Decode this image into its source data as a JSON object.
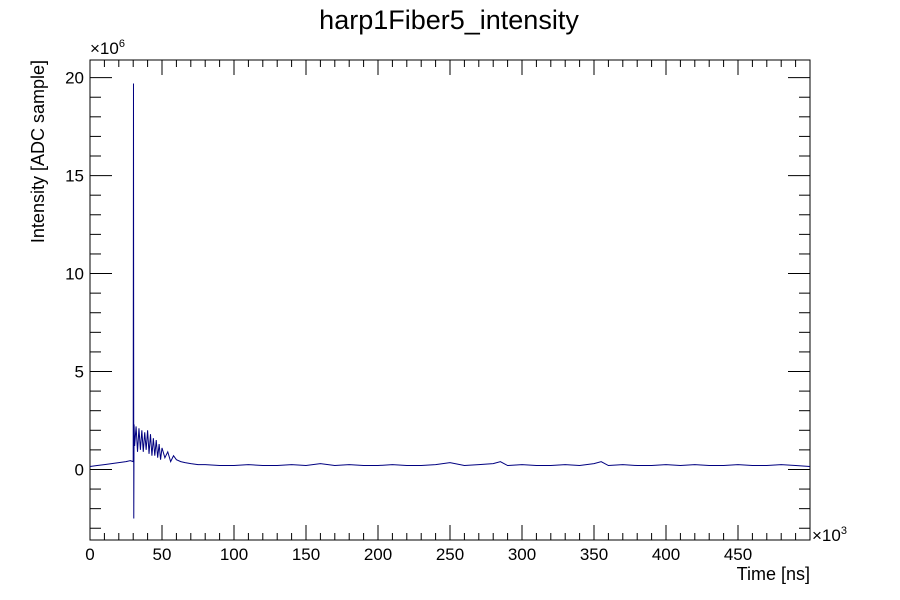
{
  "chart_data": {
    "type": "line",
    "title": "harp1Fiber5_intensity",
    "xlabel": "Time [ns]",
    "ylabel": "Intensity [ADC sample]",
    "x_exponent_label": "×10",
    "x_exponent_power": "3",
    "y_exponent_label": "×10",
    "y_exponent_power": "6",
    "xlim": [
      0,
      500
    ],
    "ylim": [
      -3.6,
      20.9
    ],
    "xticks": [
      0,
      50,
      100,
      150,
      200,
      250,
      300,
      350,
      400,
      450
    ],
    "xtick_labels": [
      "0",
      "50",
      "100",
      "150",
      "200",
      "250",
      "300",
      "350",
      "400",
      "450"
    ],
    "yticks": [
      0,
      5,
      10,
      15,
      20
    ],
    "ytick_labels": [
      "0",
      "5",
      "10",
      "15",
      "20"
    ],
    "line_color": "#000080",
    "grid": false,
    "series": [
      {
        "x": [
          0,
          5,
          10,
          15,
          20,
          25,
          28,
          30,
          30.2,
          30.4,
          30.6,
          31,
          32,
          33,
          34,
          35,
          36,
          37,
          38,
          39,
          40,
          41,
          42,
          43,
          44,
          45,
          46,
          47,
          48,
          49,
          50,
          52,
          54,
          56,
          58,
          60,
          63,
          66,
          70,
          75,
          80,
          90,
          100,
          110,
          120,
          130,
          140,
          150,
          160,
          170,
          180,
          190,
          200,
          210,
          220,
          230,
          240,
          250,
          260,
          270,
          280,
          285,
          290,
          300,
          310,
          320,
          330,
          340,
          350,
          355,
          360,
          370,
          380,
          390,
          400,
          410,
          420,
          430,
          440,
          450,
          460,
          470,
          480,
          490,
          500
        ],
        "y": [
          0.15,
          0.2,
          0.25,
          0.3,
          0.35,
          0.4,
          0.45,
          0.4,
          19.7,
          -2.5,
          2.3,
          1.2,
          2.2,
          0.9,
          2.1,
          1.0,
          2.0,
          0.9,
          1.9,
          1.0,
          2.0,
          0.8,
          1.8,
          0.7,
          1.6,
          0.7,
          1.5,
          0.6,
          1.3,
          0.5,
          1.1,
          0.6,
          0.9,
          0.4,
          0.7,
          0.5,
          0.4,
          0.35,
          0.3,
          0.25,
          0.25,
          0.2,
          0.2,
          0.25,
          0.2,
          0.2,
          0.25,
          0.2,
          0.3,
          0.2,
          0.25,
          0.2,
          0.2,
          0.25,
          0.2,
          0.2,
          0.25,
          0.35,
          0.2,
          0.25,
          0.3,
          0.4,
          0.2,
          0.25,
          0.2,
          0.2,
          0.25,
          0.2,
          0.3,
          0.4,
          0.2,
          0.25,
          0.2,
          0.2,
          0.25,
          0.2,
          0.25,
          0.2,
          0.2,
          0.25,
          0.2,
          0.2,
          0.25,
          0.2,
          0.15
        ]
      }
    ]
  }
}
